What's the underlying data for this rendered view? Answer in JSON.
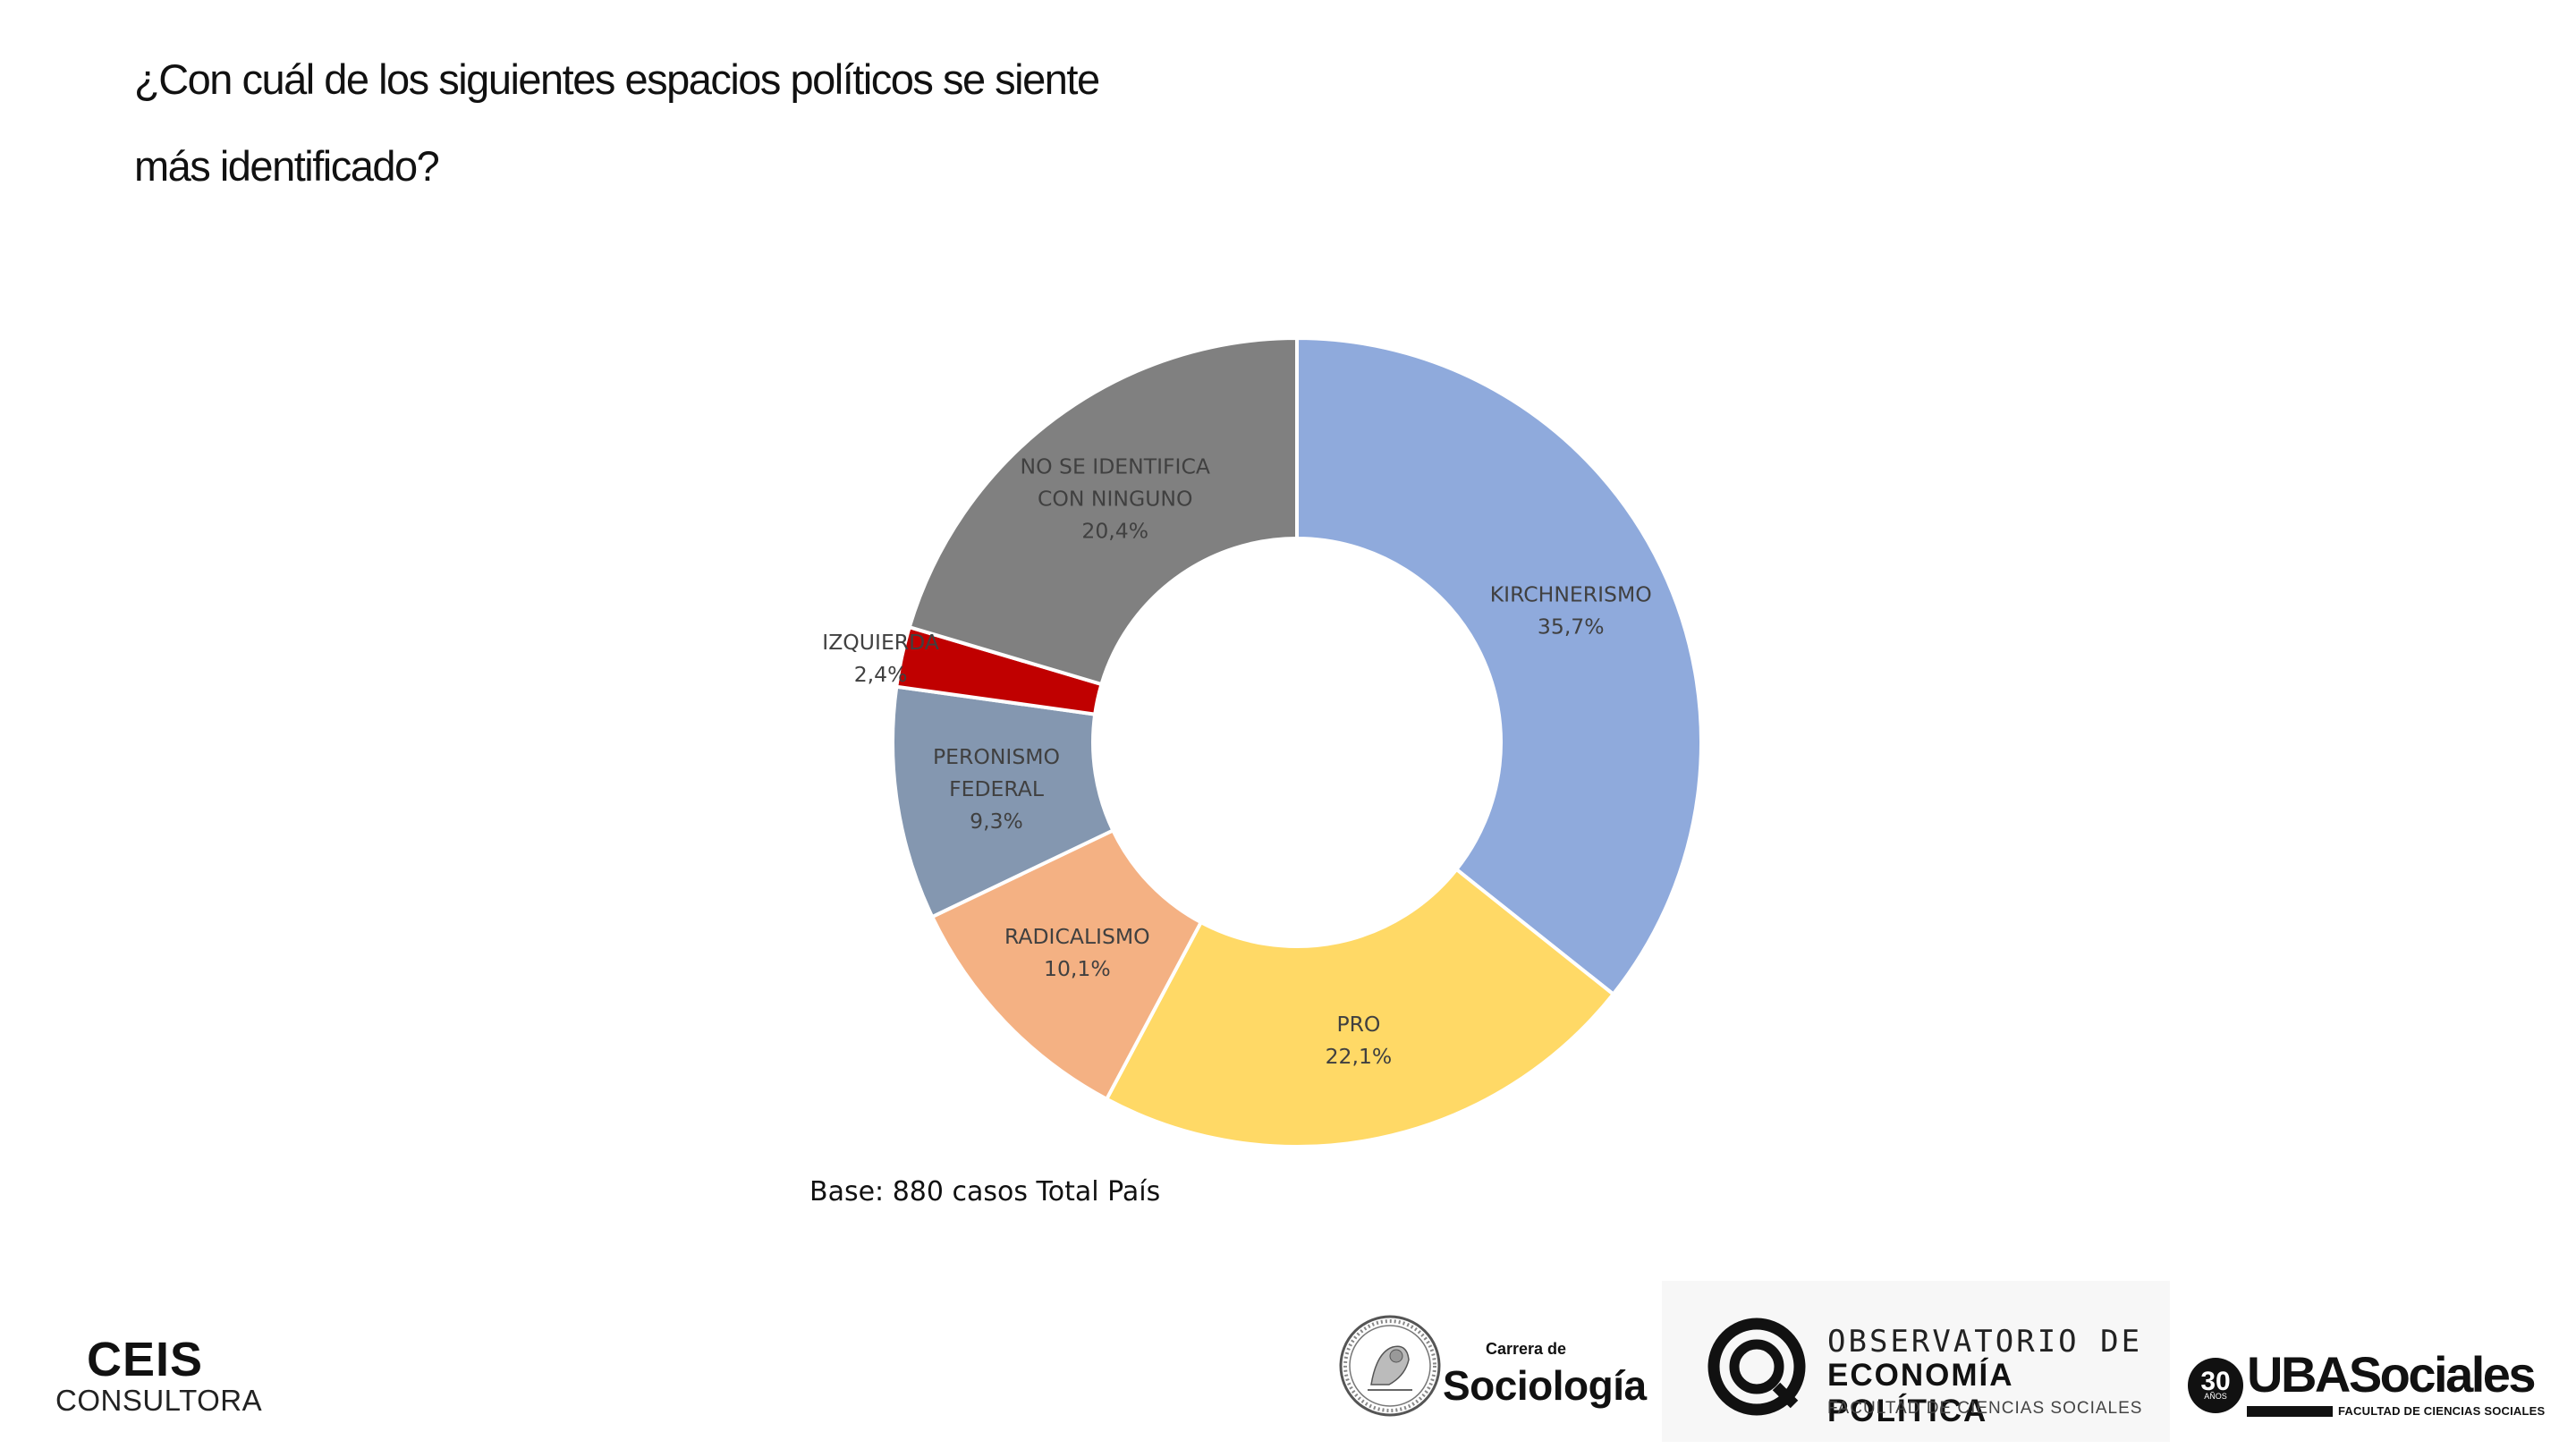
{
  "question": {
    "line1": "¿Con cuál de los siguientes espacios políticos se siente",
    "line2": "más identificado?"
  },
  "chart_data": {
    "type": "pie",
    "donut": true,
    "slices": [
      {
        "label_lines": [
          "KIRCHNERISMO"
        ],
        "value": 35.7,
        "value_label": "35,7%",
        "color": "#8faadc"
      },
      {
        "label_lines": [
          "PRO"
        ],
        "value": 22.1,
        "value_label": "22,1%",
        "color": "#ffd966"
      },
      {
        "label_lines": [
          "RADICALISMO"
        ],
        "value": 10.1,
        "value_label": "10,1%",
        "color": "#f4b183"
      },
      {
        "label_lines": [
          "PERONISMO",
          "FEDERAL"
        ],
        "value": 9.3,
        "value_label": "9,3%",
        "color": "#8497b0"
      },
      {
        "label_lines": [
          "IZQUIERDA"
        ],
        "value": 2.4,
        "value_label": "2,4%",
        "color": "#c00000"
      },
      {
        "label_lines": [
          "NO SE IDENTIFICA",
          "CON NINGUNO"
        ],
        "value": 20.4,
        "value_label": "20,4%",
        "color": "#808080"
      }
    ]
  },
  "note": "Base: 880 casos Total País",
  "logos": {
    "ceis_main": "CEIS",
    "ceis_sub": "CONSULTORA",
    "sociologia_small": "Carrera de",
    "sociologia_big": "Sociología",
    "obs_line1": "OBSERVATORIO DE",
    "obs_line2": "ECONOMÍA POLÍTICA",
    "obs_line3": "FACULTAD DE CIENCIAS SOCIALES",
    "uba_badge": "30",
    "uba_badge_small": "AÑOS",
    "uba_word": "UBASociales",
    "uba_sub": "FACULTAD DE CIENCIAS SOCIALES"
  }
}
